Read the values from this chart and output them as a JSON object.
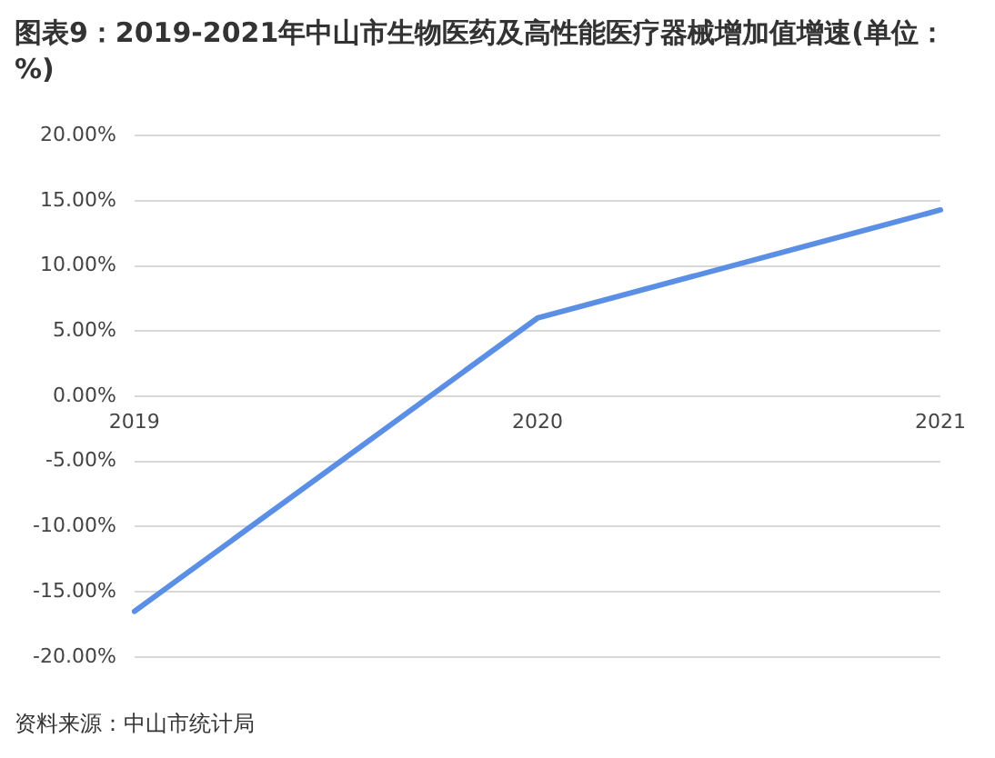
{
  "chart_data": {
    "type": "line",
    "title": "图表9：2019-2021年中山市生物医药及高性能医疗器械增加值增速(单位：%)",
    "categories": [
      "2019",
      "2020",
      "2021"
    ],
    "series": [
      {
        "color": "#5b8fe6",
        "values": [
          -16.5,
          6.0,
          14.3
        ]
      }
    ],
    "ylim": [
      -20,
      20
    ],
    "yticks": [
      {
        "value": -20,
        "label": "-20.00%"
      },
      {
        "value": -15,
        "label": "-15.00%"
      },
      {
        "value": -10,
        "label": "-10.00%"
      },
      {
        "value": -5,
        "label": "-5.00%"
      },
      {
        "value": 0,
        "label": "0.00%"
      },
      {
        "value": 5,
        "label": "5.00%"
      },
      {
        "value": 10,
        "label": "10.00%"
      },
      {
        "value": 15,
        "label": "15.00%"
      },
      {
        "value": 20,
        "label": "20.00%"
      }
    ],
    "grid": "y",
    "legend": false,
    "marker": "none",
    "line_style": "solid",
    "annotations": [
      "资料来源：中山市统计局"
    ]
  }
}
